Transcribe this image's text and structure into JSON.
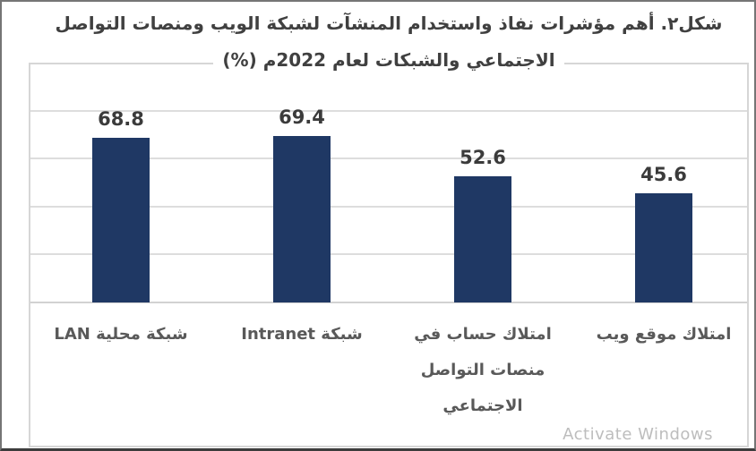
{
  "watermark": "Activate Windows",
  "chart": {
    "title_line1": "شكل٢. أهم مؤشرات نفاذ واستخدام المنشآت لشبكة الويب ومنصات التواصل",
    "title_line2": "الاجتماعي والشبكات  لعام 2022م (%)",
    "categories_display": [
      [
        "شبكة محلية LAN"
      ],
      [
        "شبكة Intranet"
      ],
      [
        "امتلاك حساب في",
        "منصات التواصل",
        "الاجتماعي"
      ],
      [
        "امتلاك موقع ويب"
      ]
    ]
  },
  "chart_data": {
    "type": "bar",
    "title": "شكل٢. أهم مؤشرات نفاذ واستخدام المنشآت لشبكة الويب ومنصات التواصل الاجتماعي والشبكات لعام 2022م (%)",
    "categories": [
      "شبكة محلية LAN",
      "شبكة Intranet",
      "امتلاك حساب في منصات التواصل الاجتماعي",
      "امتلاك موقع ويب"
    ],
    "values": [
      68.8,
      69.4,
      52.6,
      45.6
    ],
    "xlabel": "",
    "ylabel": "",
    "ylim": [
      0,
      100
    ],
    "gridline_values": [
      20,
      40,
      60,
      80
    ],
    "grid": true,
    "legend": "none",
    "data_labels": true,
    "bar_color": "#1F3864",
    "direction": "rtl",
    "value_label_color": "#3b3b3b",
    "category_label_color": "#595959",
    "gridline_color": "#dddddd"
  }
}
